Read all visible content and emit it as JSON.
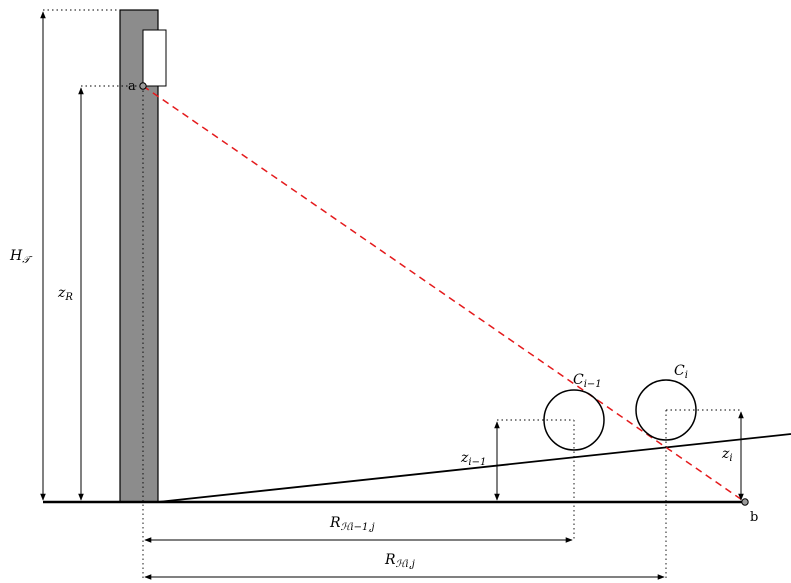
{
  "points": {
    "a": "a",
    "b": "b"
  },
  "labels": {
    "ht_main": "H",
    "ht_sub": "𝒯",
    "zr_main": "z",
    "zr_sub": "R",
    "zi1_main": "z",
    "zi1_sub": "i−1",
    "zi_main": "z",
    "zi_sub": "i",
    "ci1_main": "C",
    "ci1_sub": "i−1",
    "ci_main": "C",
    "ci_sub": "i",
    "rh1_main": "R",
    "rh1_sub": "ℋi−1,j",
    "rh_main": "R",
    "rh_sub": "ℋi,j"
  },
  "colors": {
    "tower_fill": "#8c8c8c",
    "line_of_sight": "#e41a1c",
    "ink": "#000000",
    "point_fill": "#9a9a9a"
  }
}
